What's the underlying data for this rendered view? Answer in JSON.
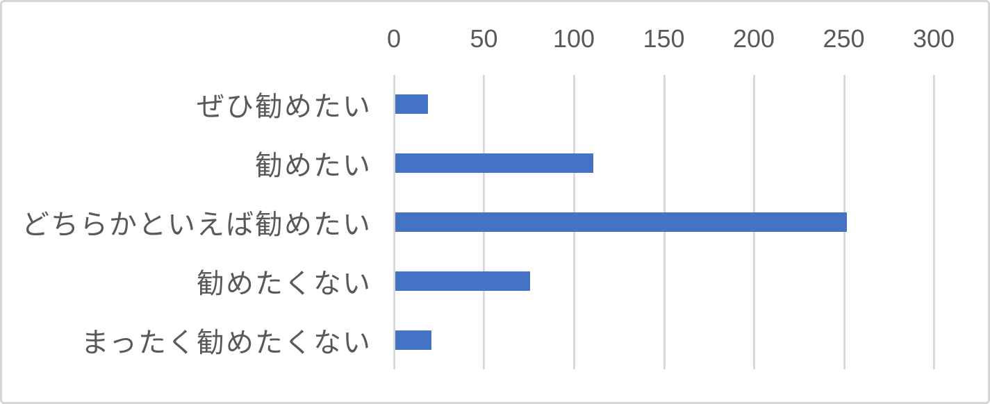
{
  "chart_data": {
    "type": "bar",
    "orientation": "horizontal",
    "title": "",
    "xlabel": "",
    "ylabel": "",
    "categories": [
      "ぜひ勧めたい",
      "勧めたい",
      "どちらかといえば勧めたい",
      "勧めたくない",
      "まったく勧めたくない"
    ],
    "values": [
      18,
      110,
      251,
      75,
      20
    ],
    "xlim": [
      0,
      300
    ],
    "xticks": [
      0,
      50,
      100,
      150,
      200,
      250,
      300
    ],
    "grid": true,
    "legend": false,
    "colors": {
      "bar": "#4472C4",
      "gridline": "#D9D9D9",
      "tick_label": "#595959",
      "category_label": "#595959",
      "frame_border": "#D6D6D6",
      "background": "#FFFFFF"
    }
  }
}
